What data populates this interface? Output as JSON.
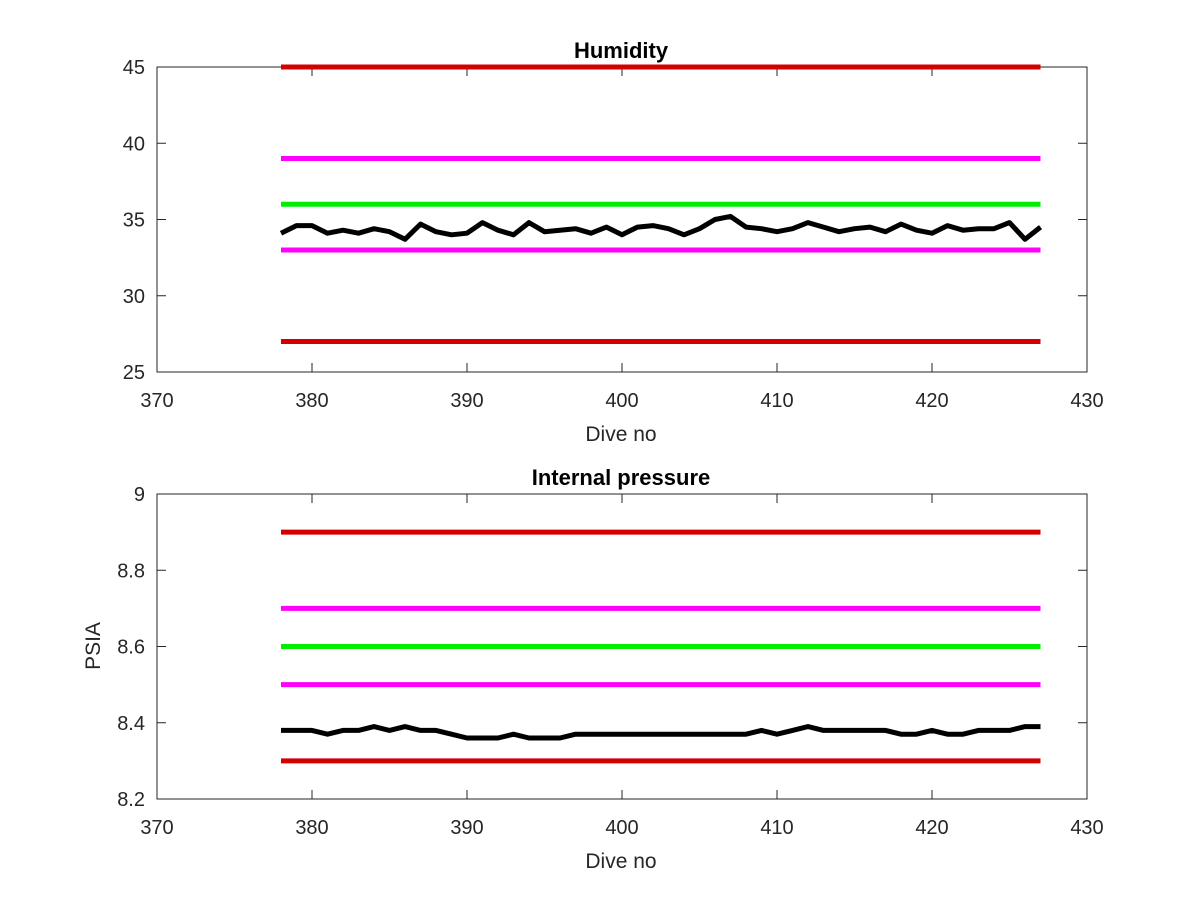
{
  "chart_data": [
    {
      "type": "line",
      "title": "Humidity",
      "xlabel": "Dive no",
      "ylabel": "",
      "xlim": [
        370,
        430
      ],
      "ylim": [
        25,
        45
      ],
      "xticks": [
        "370",
        "380",
        "390",
        "400",
        "410",
        "420",
        "430"
      ],
      "yticks": [
        "25",
        "30",
        "35",
        "40",
        "45"
      ],
      "grid": false,
      "series": [
        {
          "color": "#d40000",
          "x": [
            378,
            427
          ],
          "values": [
            45,
            45
          ]
        },
        {
          "color": "#ff00ff",
          "x": [
            378,
            427
          ],
          "values": [
            39,
            39
          ]
        },
        {
          "color": "#00ee00",
          "x": [
            378,
            427
          ],
          "values": [
            36,
            36
          ]
        },
        {
          "color": "#ff00ff",
          "x": [
            378,
            427
          ],
          "values": [
            33,
            33
          ]
        },
        {
          "color": "#d40000",
          "x": [
            378,
            427
          ],
          "values": [
            27,
            27
          ]
        },
        {
          "color": "#000000",
          "x": [
            378,
            379,
            380,
            381,
            382,
            383,
            384,
            385,
            386,
            387,
            388,
            389,
            390,
            391,
            392,
            393,
            394,
            395,
            396,
            397,
            398,
            399,
            400,
            401,
            402,
            403,
            404,
            405,
            406,
            407,
            408,
            409,
            410,
            411,
            412,
            413,
            414,
            415,
            416,
            417,
            418,
            419,
            420,
            421,
            422,
            423,
            424,
            425,
            426,
            427
          ],
          "values": [
            34.1,
            34.6,
            34.6,
            34.1,
            34.3,
            34.1,
            34.4,
            34.2,
            33.7,
            34.7,
            34.2,
            34.0,
            34.1,
            34.8,
            34.3,
            34.0,
            34.8,
            34.2,
            34.3,
            34.4,
            34.1,
            34.5,
            34.0,
            34.5,
            34.6,
            34.4,
            34.0,
            34.4,
            35.0,
            35.2,
            34.5,
            34.4,
            34.2,
            34.4,
            34.8,
            34.5,
            34.2,
            34.4,
            34.5,
            34.2,
            34.7,
            34.3,
            34.1,
            34.6,
            34.3,
            34.4,
            34.4,
            34.8,
            33.7,
            34.5
          ]
        }
      ]
    },
    {
      "type": "line",
      "title": "Internal pressure",
      "xlabel": "Dive no",
      "ylabel": "PSIA",
      "xlim": [
        370,
        430
      ],
      "ylim": [
        8.2,
        9
      ],
      "xticks": [
        "370",
        "380",
        "390",
        "400",
        "410",
        "420",
        "430"
      ],
      "yticks": [
        "8.2",
        "8.4",
        "8.6",
        "8.8",
        "9"
      ],
      "grid": false,
      "series": [
        {
          "color": "#d40000",
          "x": [
            378,
            427
          ],
          "values": [
            8.9,
            8.9
          ]
        },
        {
          "color": "#ff00ff",
          "x": [
            378,
            427
          ],
          "values": [
            8.7,
            8.7
          ]
        },
        {
          "color": "#00ee00",
          "x": [
            378,
            427
          ],
          "values": [
            8.6,
            8.6
          ]
        },
        {
          "color": "#ff00ff",
          "x": [
            378,
            427
          ],
          "values": [
            8.5,
            8.5
          ]
        },
        {
          "color": "#d40000",
          "x": [
            378,
            427
          ],
          "values": [
            8.3,
            8.3
          ]
        },
        {
          "color": "#000000",
          "x": [
            378,
            379,
            380,
            381,
            382,
            383,
            384,
            385,
            386,
            387,
            388,
            389,
            390,
            391,
            392,
            393,
            394,
            395,
            396,
            397,
            398,
            399,
            400,
            401,
            402,
            403,
            404,
            405,
            406,
            407,
            408,
            409,
            410,
            411,
            412,
            413,
            414,
            415,
            416,
            417,
            418,
            419,
            420,
            421,
            422,
            423,
            424,
            425,
            426,
            427
          ],
          "values": [
            8.38,
            8.38,
            8.38,
            8.37,
            8.38,
            8.38,
            8.39,
            8.38,
            8.39,
            8.38,
            8.38,
            8.37,
            8.36,
            8.36,
            8.36,
            8.37,
            8.36,
            8.36,
            8.36,
            8.37,
            8.37,
            8.37,
            8.37,
            8.37,
            8.37,
            8.37,
            8.37,
            8.37,
            8.37,
            8.37,
            8.37,
            8.38,
            8.37,
            8.38,
            8.39,
            8.38,
            8.38,
            8.38,
            8.38,
            8.38,
            8.37,
            8.37,
            8.38,
            8.37,
            8.37,
            8.38,
            8.38,
            8.38,
            8.39,
            8.39
          ]
        }
      ]
    }
  ]
}
